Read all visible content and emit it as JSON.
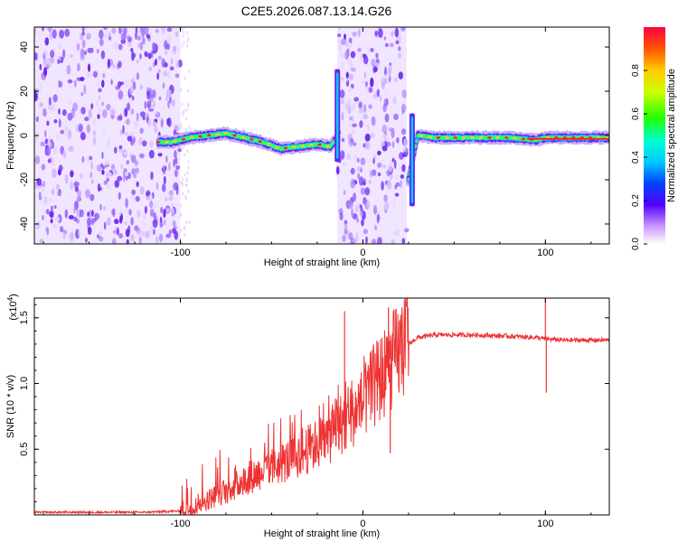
{
  "figure_title": "C2E5.2026.087.13.14.G26",
  "chart_data": [
    {
      "type": "heatmap",
      "title": "C2E5.2026.087.13.14.G26",
      "xlabel": "Height of straight line (km)",
      "ylabel": "Frequency (Hz)",
      "xlim": [
        -180,
        135
      ],
      "ylim": [
        -49,
        49
      ],
      "xticks": [
        -100,
        0,
        100
      ],
      "yticks": [
        -40,
        -20,
        0,
        20,
        40
      ],
      "xtick_labels": [
        "-100",
        "0",
        "100"
      ],
      "ytick_labels": [
        "-40",
        "-20",
        "0",
        "20",
        "40"
      ],
      "colorbar": {
        "label": "Normalized spectral amplitude",
        "range": [
          0,
          1
        ],
        "ticks": [
          0.0,
          0.2,
          0.4,
          0.6,
          0.8
        ],
        "tick_labels": [
          "0.0",
          "0.2",
          "0.4",
          "0.6",
          "0.8"
        ]
      },
      "noise_regions": [
        {
          "x_start": -180,
          "x_end": -100,
          "density": "high"
        },
        {
          "x_start": -14,
          "x_end": 24,
          "density": "high"
        }
      ],
      "signal_trace": {
        "x": [
          -112,
          -105,
          -95,
          -85,
          -75,
          -65,
          -55,
          -45,
          -35,
          -25,
          -18,
          -13,
          25,
          30,
          40,
          60,
          80,
          95,
          100,
          110,
          120,
          135
        ],
        "y": [
          -3,
          -3,
          -1,
          0,
          1,
          -1,
          -3,
          -6,
          -5,
          -4,
          -5,
          0,
          -20,
          0,
          -1,
          -1,
          -1,
          -2,
          -1,
          -1,
          -1,
          -1
        ],
        "peak_amplitude": 0.9
      },
      "spikes": [
        {
          "x": -14,
          "y_from": -12,
          "y_to": 30
        },
        {
          "x": 27,
          "y_from": -32,
          "y_to": 10
        }
      ]
    },
    {
      "type": "line",
      "xlabel": "Height of straight line (km)",
      "ylabel": "SNR (10 * v/v)",
      "exponent_label": "(x10",
      "exponent_power": "4",
      "exponent_close": ")",
      "xlim": [
        -180,
        135
      ],
      "ylim": [
        0,
        1.65
      ],
      "xticks": [
        -100,
        0,
        100
      ],
      "yticks": [
        0.5,
        1.0,
        1.5
      ],
      "xtick_labels": [
        "-100",
        "0",
        "100"
      ],
      "ytick_labels": [
        "0.5",
        "1.0",
        "1.5"
      ],
      "series": [
        {
          "name": "SNR",
          "color": "#ee3333",
          "x": [
            -180,
            -150,
            -120,
            -100,
            -95,
            -90,
            -80,
            -70,
            -60,
            -50,
            -40,
            -30,
            -20,
            -10,
            0,
            5,
            10,
            15,
            20,
            25,
            30,
            40,
            60,
            80,
            95,
            100,
            110,
            120,
            135
          ],
          "values": [
            0.02,
            0.02,
            0.02,
            0.03,
            0.05,
            0.08,
            0.15,
            0.22,
            0.3,
            0.36,
            0.42,
            0.5,
            0.58,
            0.72,
            0.85,
            0.95,
            1.05,
            1.15,
            1.25,
            1.3,
            1.35,
            1.37,
            1.37,
            1.36,
            1.35,
            1.34,
            1.33,
            1.33,
            1.33
          ],
          "spikes": [
            {
              "x": -10,
              "value": 1.55
            },
            {
              "x": 14,
              "value": 1.58
            },
            {
              "x": 15,
              "value": 0.47
            },
            {
              "x": 100,
              "value": 1.65
            },
            {
              "x": 100.5,
              "value": 0.93
            }
          ]
        }
      ]
    }
  ]
}
